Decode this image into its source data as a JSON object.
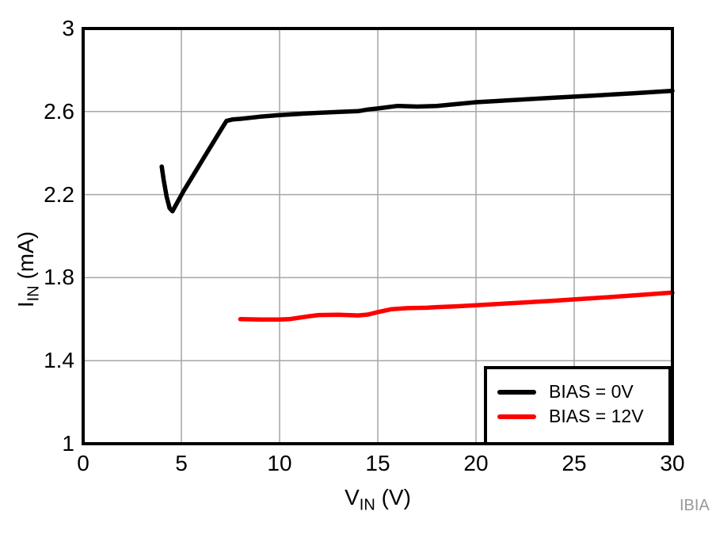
{
  "chart_data": {
    "type": "line",
    "title": "",
    "xlabel": {
      "base": "V",
      "sub": "IN",
      "rest": " (V)"
    },
    "ylabel": {
      "base": "I",
      "sub": "IN",
      "rest": " (mA)"
    },
    "xlim": [
      0,
      30
    ],
    "ylim": [
      1,
      3
    ],
    "x_ticks": [
      0,
      5,
      10,
      15,
      20,
      25,
      30
    ],
    "y_ticks": [
      1,
      1.4,
      1.8,
      2.2,
      2.6,
      3
    ],
    "x_tick_labels": [
      "0",
      "5",
      "10",
      "15",
      "20",
      "25",
      "30"
    ],
    "y_tick_labels": [
      "1",
      "1.4",
      "1.8",
      "2.2",
      "2.6",
      "3"
    ],
    "grid": true,
    "legend_position": "bottom-right",
    "series": [
      {
        "name": "BIAS = 0V",
        "color": "#000000",
        "points": [
          [
            4.0,
            2.335
          ],
          [
            4.1,
            2.27
          ],
          [
            4.25,
            2.19
          ],
          [
            4.4,
            2.135
          ],
          [
            4.55,
            2.12
          ],
          [
            4.75,
            2.155
          ],
          [
            5.1,
            2.215
          ],
          [
            6.0,
            2.355
          ],
          [
            7.0,
            2.51
          ],
          [
            7.3,
            2.555
          ],
          [
            7.6,
            2.562
          ],
          [
            8.0,
            2.565
          ],
          [
            9.0,
            2.575
          ],
          [
            10,
            2.583
          ],
          [
            11,
            2.589
          ],
          [
            12,
            2.594
          ],
          [
            13,
            2.598
          ],
          [
            14,
            2.602
          ],
          [
            14.5,
            2.61
          ],
          [
            15,
            2.615
          ],
          [
            16,
            2.627
          ],
          [
            17,
            2.624
          ],
          [
            18,
            2.627
          ],
          [
            19,
            2.636
          ],
          [
            20,
            2.645
          ],
          [
            22,
            2.656
          ],
          [
            24,
            2.667
          ],
          [
            26,
            2.677
          ],
          [
            28,
            2.688
          ],
          [
            30,
            2.7
          ]
        ]
      },
      {
        "name": "BIAS = 12V",
        "color": "#ff0000",
        "points": [
          [
            8.0,
            1.6
          ],
          [
            9.0,
            1.598
          ],
          [
            10,
            1.598
          ],
          [
            10.5,
            1.6
          ],
          [
            11.5,
            1.614
          ],
          [
            12,
            1.62
          ],
          [
            13,
            1.621
          ],
          [
            14,
            1.618
          ],
          [
            14.5,
            1.622
          ],
          [
            15,
            1.634
          ],
          [
            15.7,
            1.648
          ],
          [
            16.5,
            1.653
          ],
          [
            17.5,
            1.655
          ],
          [
            18,
            1.658
          ],
          [
            19,
            1.662
          ],
          [
            20,
            1.667
          ],
          [
            22,
            1.678
          ],
          [
            24,
            1.689
          ],
          [
            26,
            1.701
          ],
          [
            28,
            1.714
          ],
          [
            30,
            1.728
          ]
        ]
      }
    ]
  },
  "watermark": "IBIA",
  "colors": {
    "grid": "#a6a6a6",
    "axis": "#000000",
    "background": "#ffffff",
    "watermark": "#999999"
  }
}
